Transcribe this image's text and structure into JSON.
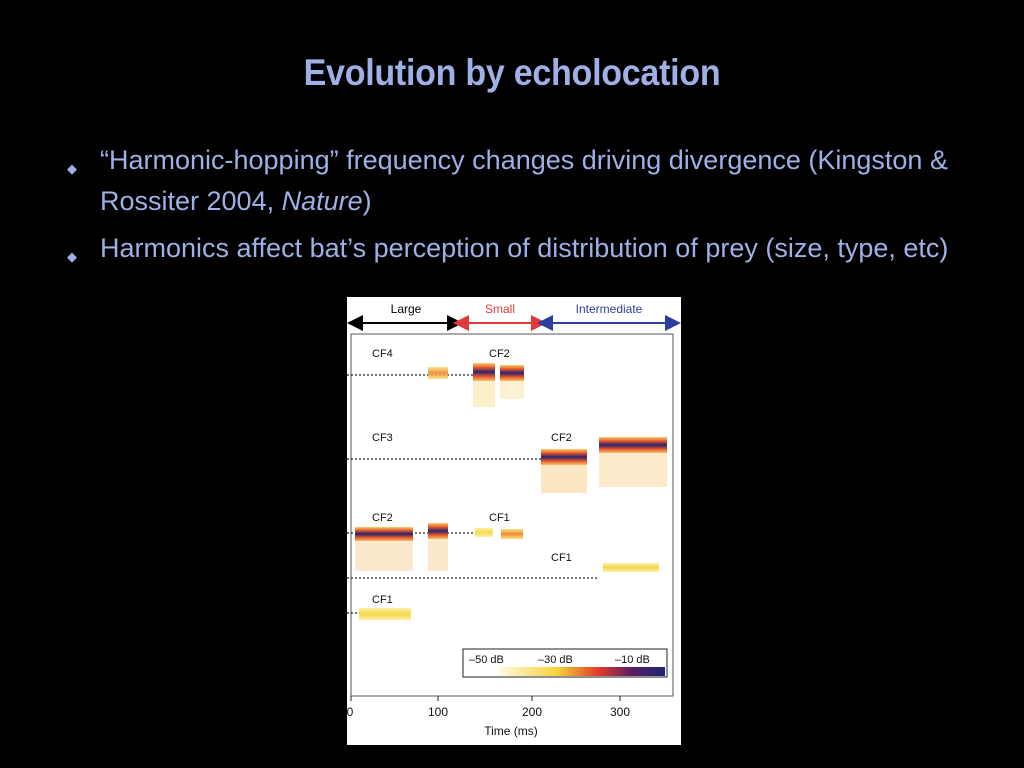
{
  "slide": {
    "title": "Evolution by echolocation",
    "bullets": [
      {
        "text_before": "“Harmonic-hopping” frequency changes driving divergence (Kingston & Rossiter 2004, ",
        "italic": "Nature",
        "text_after": ")"
      },
      {
        "text": "Harmonics affect bat’s perception of distribution of prey (size, type, etc)"
      }
    ],
    "colors": {
      "background": "#000000",
      "text": "#9fb0e6"
    },
    "bullet_icon": "diamond-bullet-icon"
  },
  "figure": {
    "groups": [
      {
        "label": "Large",
        "color": "#000000"
      },
      {
        "label": "Small",
        "color": "#e03a3a"
      },
      {
        "label": "Intermediate",
        "color": "#2b3f9e"
      }
    ],
    "cf_labels": [
      "CF4",
      "CF2",
      "CF3",
      "CF2",
      "CF2",
      "CF1",
      "CF1",
      "CF1"
    ],
    "x_ticks": [
      "0",
      "100",
      "200",
      "300"
    ],
    "x_label": "Time (ms)",
    "colorbar_labels": [
      "–50 dB",
      "–30 dB",
      "–10 dB"
    ]
  }
}
